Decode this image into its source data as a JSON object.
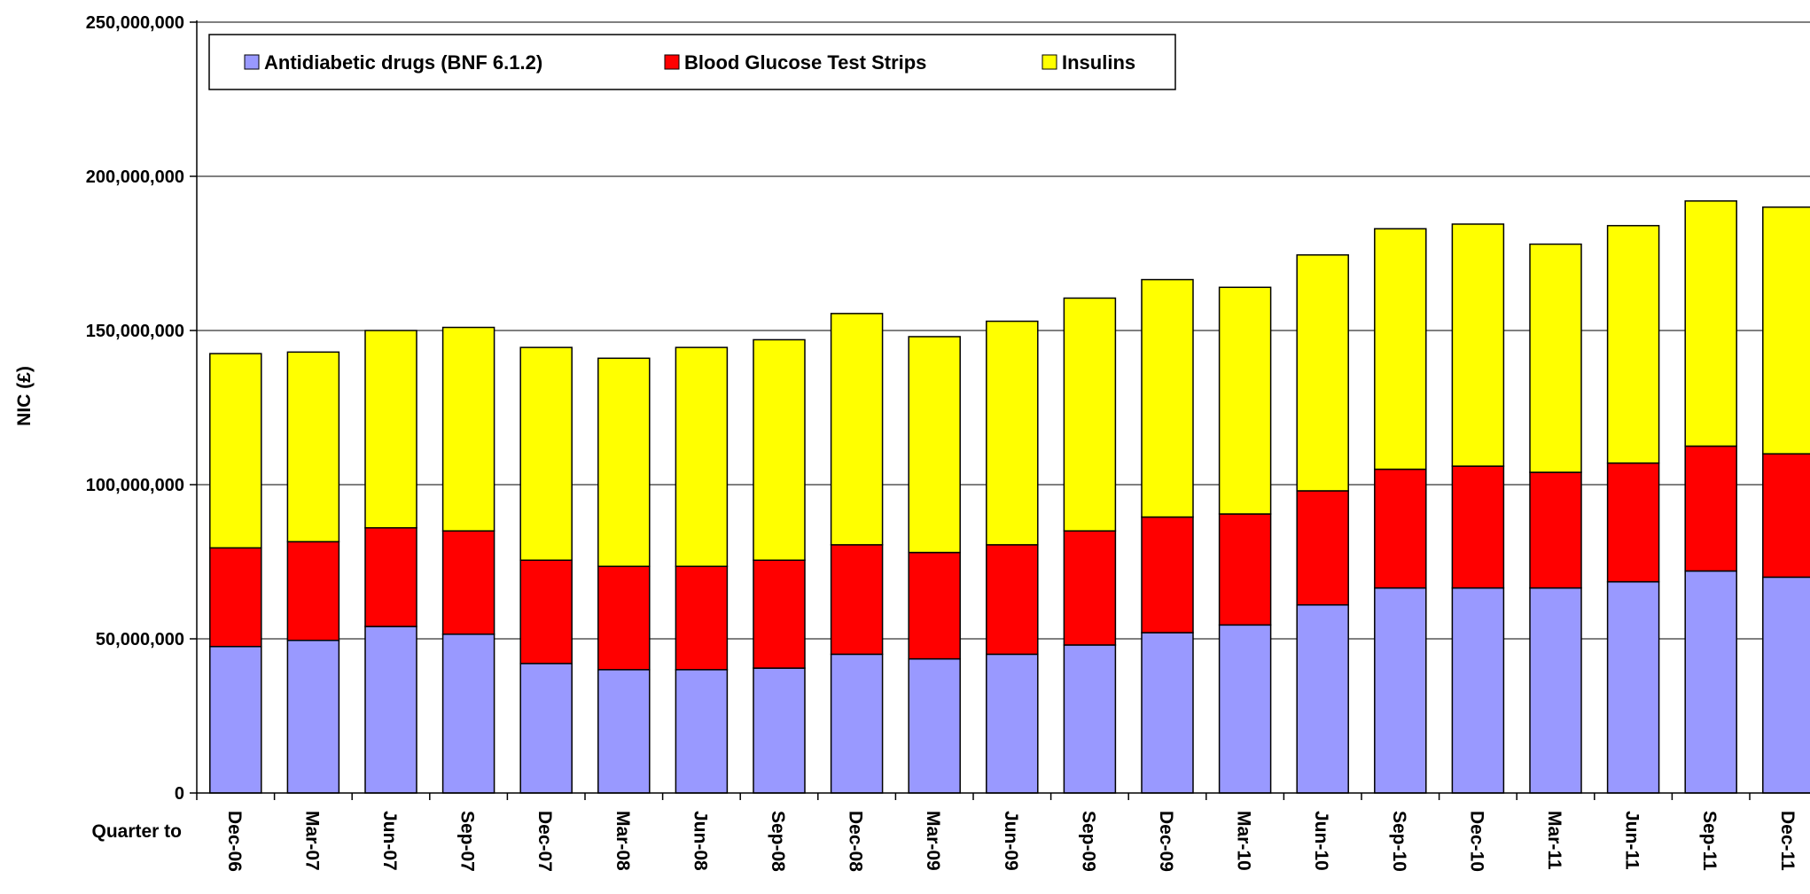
{
  "chart_data": {
    "type": "bar",
    "stacked": true,
    "xlabel": "Quarter to",
    "ylabel": "NIC (£)",
    "ylim": [
      0,
      250000000
    ],
    "yticks": [
      0,
      50000000,
      100000000,
      150000000,
      200000000,
      250000000
    ],
    "ytick_labels": [
      "0",
      "50,000,000",
      "100,000,000",
      "150,000,000",
      "200,000,000",
      "250,000,000"
    ],
    "grid": true,
    "legend": "top-left",
    "categories": [
      "Dec-06",
      "Mar-07",
      "Jun-07",
      "Sep-07",
      "Dec-07",
      "Mar-08",
      "Jun-08",
      "Sep-08",
      "Dec-08",
      "Mar-09",
      "Jun-09",
      "Sep-09",
      "Dec-09",
      "Mar-10",
      "Jun-10",
      "Sep-10",
      "Dec-10",
      "Mar-11",
      "Jun-11",
      "Sep-11",
      "Dec-11"
    ],
    "series": [
      {
        "name": "Antidiabetic drugs (BNF 6.1.2)",
        "color": "#9999ff",
        "values": [
          47500000,
          49500000,
          54000000,
          51500000,
          42000000,
          40000000,
          40000000,
          40500000,
          45000000,
          43500000,
          45000000,
          48000000,
          52000000,
          54500000,
          61000000,
          66500000,
          66500000,
          66500000,
          68500000,
          72000000,
          70000000
        ]
      },
      {
        "name": "Blood Glucose Test Strips",
        "color": "#ff0000",
        "values": [
          32000000,
          32000000,
          32000000,
          33500000,
          33500000,
          33500000,
          33500000,
          35000000,
          35500000,
          34500000,
          35500000,
          37000000,
          37500000,
          36000000,
          37000000,
          38500000,
          39500000,
          37500000,
          38500000,
          40500000,
          40000000
        ]
      },
      {
        "name": "Insulins",
        "color": "#ffff00",
        "values": [
          63000000,
          61500000,
          64000000,
          66000000,
          69000000,
          67500000,
          71000000,
          71500000,
          75000000,
          70000000,
          72500000,
          75500000,
          77000000,
          73500000,
          76500000,
          78000000,
          78500000,
          74000000,
          77000000,
          79500000,
          80000000
        ]
      }
    ]
  }
}
